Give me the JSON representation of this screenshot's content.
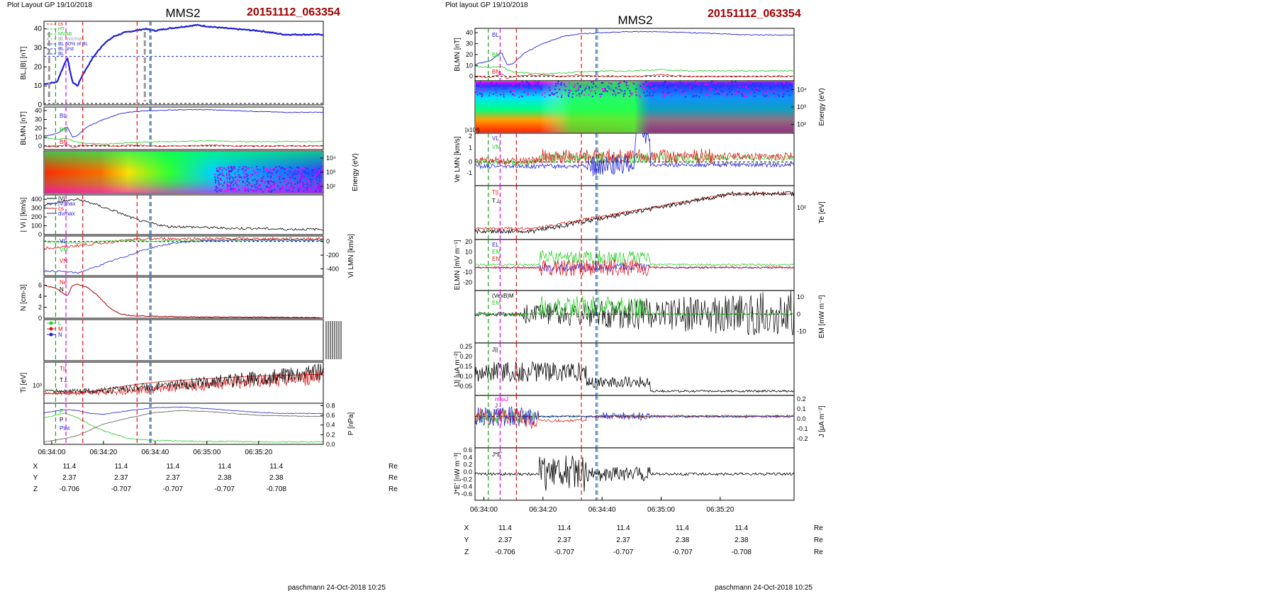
{
  "colors": {
    "black": "#000000",
    "blue": "#1f1fd6",
    "green": "#22cc22",
    "red": "#e01010",
    "magenta": "#e000e0",
    "title_red": "#a00000",
    "gray": "#999999"
  },
  "left_panel": {
    "layout_label": "Plot Layout GP 19/10/2018",
    "title": "MMS2",
    "event_id": "20151112_063354",
    "footer": "paschmann 24-Oct-2018 10:25",
    "time_ticks": [
      "06:34:00",
      "06:34:20",
      "06:34:40",
      "06:35:00",
      "06:35:20"
    ],
    "ephemeris": [
      {
        "label": "X",
        "values": [
          "11.4",
          "11.4",
          "11.4",
          "11.4",
          "11.4"
        ],
        "unit": "Re"
      },
      {
        "label": "Y",
        "values": [
          "2.37",
          "2.37",
          "2.37",
          "2.38",
          "2.38"
        ],
        "unit": "Re"
      },
      {
        "label": "Z",
        "values": [
          "-0.706",
          "-0.707",
          "-0.707",
          "-0.707",
          "-0.708"
        ],
        "unit": "Re"
      }
    ],
    "legend_panel1": [
      "cs",
      "HT",
      "MVAB",
      "BL min/max",
      "BL 50% of BL",
      "BL brst",
      "BL"
    ],
    "legend_panel4": [
      "|V|",
      "|V|max",
      "cs",
      "dvmax"
    ],
    "legend_panel5": [
      "VL",
      "VM",
      "VN"
    ],
    "legend_panel6": [
      "Ne",
      "N"
    ],
    "legend_panel7": [
      "L",
      "M",
      "N"
    ],
    "legend_panel8": [
      "T||",
      "T⊥"
    ],
    "legend_panel9": [
      "P",
      "P",
      "Ptot"
    ]
  },
  "right_panel": {
    "layout_label": "Plot layout GP 19/10/2018",
    "title": "MMS2",
    "event_id": "20151112_063354",
    "footer": "paschmann 24-Oct-2018 10:25",
    "time_ticks": [
      "06:34:00",
      "06:34:20",
      "06:34:40",
      "06:35:00",
      "06:35:20"
    ],
    "ephemeris": [
      {
        "label": "X",
        "values": [
          "11.4",
          "11.4",
          "11.4",
          "11.4",
          "11.4"
        ],
        "unit": "Re"
      },
      {
        "label": "Y",
        "values": [
          "2.37",
          "2.37",
          "2.37",
          "2.38",
          "2.38"
        ],
        "unit": "Re"
      },
      {
        "label": "Z",
        "values": [
          "-0.706",
          "-0.707",
          "-0.707",
          "-0.707",
          "-0.708"
        ],
        "unit": "Re"
      }
    ],
    "legend_panel4": [
      "T||",
      "T⊥"
    ],
    "legend_panel5": [
      "EL",
      "EM",
      "EN"
    ],
    "legend_panel6": [
      "(VexB)M",
      "EM"
    ],
    "legend_panel7": [
      "J||"
    ],
    "legend_panel8": [
      "maxJ",
      "J"
    ],
    "legend_panel9": [
      "J*E'"
    ]
  },
  "chart_data": [
    {
      "type": "line",
      "panel": "left-1",
      "ylabel": "BL,|B| [nT]",
      "yticks": [
        "0",
        "10",
        "20",
        "30",
        "40"
      ],
      "ylim": [
        0,
        44
      ],
      "x_seconds_from_063400": [
        -3,
        2,
        6,
        8,
        10,
        12,
        16,
        20,
        24,
        28,
        32,
        36,
        40,
        44,
        50,
        56,
        62,
        70,
        80,
        90,
        100
      ],
      "series": [
        {
          "name": "BL",
          "values": [
            11,
            12,
            25,
            12,
            10,
            16,
            25,
            32,
            36,
            38,
            39,
            40,
            39,
            40,
            41,
            42,
            41,
            40,
            39,
            37,
            37
          ]
        }
      ],
      "hlines": [
        25.5,
        0
      ]
    },
    {
      "type": "line",
      "panel": "left-2",
      "ylabel": "BLMN [nT]",
      "yticks": [
        "0",
        "10",
        "20",
        "30",
        "40"
      ],
      "ylim": [
        -4,
        44
      ],
      "x_seconds_from_063400": [
        -3,
        2,
        6,
        8,
        10,
        14,
        20,
        26,
        32,
        40,
        50,
        60,
        70,
        80,
        90,
        100
      ],
      "series": [
        {
          "name": "BL",
          "values": [
            11,
            14,
            22,
            10,
            12,
            22,
            30,
            36,
            39,
            40,
            41,
            41,
            40,
            39,
            38,
            38
          ]
        },
        {
          "name": "BM",
          "values": [
            9,
            8,
            9,
            6,
            4,
            3,
            2,
            3,
            4,
            5,
            5,
            6,
            5,
            5,
            5,
            5
          ]
        },
        {
          "name": "BN",
          "values": [
            0,
            -1,
            2,
            -2,
            0,
            1,
            1,
            0,
            1,
            0,
            0,
            1,
            0,
            0,
            0,
            0
          ]
        }
      ]
    },
    {
      "type": "heatmap",
      "panel": "left-3",
      "ylabel": "Energy (eV)",
      "yticks": [
        "10²",
        "10³",
        "10⁴"
      ]
    },
    {
      "type": "line",
      "panel": "left-4",
      "ylabel": "| Vi | [km/s]",
      "yticks": [
        "0",
        "100",
        "200",
        "300",
        "400"
      ],
      "ylim": [
        0,
        450
      ],
      "x_seconds_from_063400": [
        -3,
        5,
        10,
        15,
        20,
        25,
        30,
        35,
        40,
        45,
        50,
        60,
        70,
        80,
        90,
        100
      ],
      "series": [
        {
          "name": "|V|",
          "values": [
            330,
            380,
            400,
            360,
            310,
            260,
            200,
            150,
            120,
            90,
            90,
            80,
            70,
            70,
            60,
            60
          ]
        }
      ]
    },
    {
      "type": "line",
      "panel": "left-5",
      "ylabel": "Vi LMN [km/s]",
      "yticks": [
        "0",
        "-200",
        "-400"
      ],
      "ylim": [
        -500,
        80
      ],
      "x_seconds_from_063400": [
        -3,
        5,
        10,
        15,
        20,
        25,
        30,
        35,
        40,
        45,
        50,
        60,
        70,
        80,
        90,
        100
      ],
      "series": [
        {
          "name": "VL",
          "values": [
            -430,
            -440,
            -460,
            -400,
            -330,
            -260,
            -200,
            -130,
            -80,
            -40,
            -10,
            10,
            20,
            20,
            20,
            20
          ]
        },
        {
          "name": "VM",
          "values": [
            0,
            -10,
            -20,
            -10,
            0,
            10,
            20,
            10,
            0,
            10,
            10,
            20,
            20,
            20,
            30,
            20
          ]
        },
        {
          "name": "VN",
          "values": [
            -100,
            -80,
            -60,
            -40,
            -20,
            0,
            20,
            30,
            40,
            40,
            40,
            40,
            40,
            40,
            40,
            40
          ]
        }
      ]
    },
    {
      "type": "line",
      "panel": "left-6",
      "ylabel": "N [cm-3]",
      "yticks": [
        "0",
        "2",
        "4",
        "6"
      ],
      "ylim": [
        0,
        7.5
      ],
      "x_seconds_from_063400": [
        -3,
        2,
        6,
        8,
        10,
        14,
        18,
        22,
        26,
        30,
        36,
        44,
        60,
        80,
        100
      ],
      "series": [
        {
          "name": "N",
          "values": [
            6.0,
            5.4,
            4.0,
            6.0,
            6.2,
            5.6,
            4.0,
            2.0,
            0.9,
            0.5,
            0.4,
            0.3,
            0.2,
            0.2,
            0.1
          ]
        }
      ]
    },
    {
      "type": "line",
      "panel": "left-8",
      "ylabel": "Ti [eV]",
      "yticks": [
        "10³"
      ],
      "x_seconds_from_063400": [
        -3,
        10,
        20,
        30,
        40,
        50,
        60,
        70,
        80,
        90,
        100
      ],
      "series": [
        {
          "name": "T||",
          "values": [
            600,
            620,
            800,
            1100,
            1400,
            1600,
            1800,
            2000,
            2200,
            2300,
            2400
          ]
        },
        {
          "name": "T⊥",
          "values": [
            650,
            650,
            900,
            1200,
            1500,
            1800,
            2000,
            2300,
            2500,
            2600,
            2700
          ]
        }
      ]
    },
    {
      "type": "line",
      "panel": "left-9",
      "ylabel": "P [nPa]",
      "yticks": [
        "0.0",
        "0.2",
        "0.4",
        "0.6",
        "0.8"
      ],
      "ylim": [
        0,
        0.85
      ],
      "x_seconds_from_063400": [
        -3,
        5,
        10,
        15,
        20,
        30,
        40,
        50,
        60,
        70,
        80,
        90,
        100
      ],
      "series": [
        {
          "name": "Ptot",
          "values": [
            0.65,
            0.72,
            0.7,
            0.64,
            0.62,
            0.7,
            0.76,
            0.77,
            0.74,
            0.7,
            0.66,
            0.64,
            0.64
          ]
        },
        {
          "name": "P",
          "values": [
            0.55,
            0.65,
            0.55,
            0.4,
            0.28,
            0.12,
            0.08,
            0.07,
            0.06,
            0.06,
            0.05,
            0.05,
            0.05
          ]
        },
        {
          "name": "P",
          "values": [
            0.05,
            0.12,
            0.18,
            0.3,
            0.42,
            0.55,
            0.66,
            0.7,
            0.68,
            0.64,
            0.6,
            0.59,
            0.58
          ]
        }
      ]
    }
  ]
}
